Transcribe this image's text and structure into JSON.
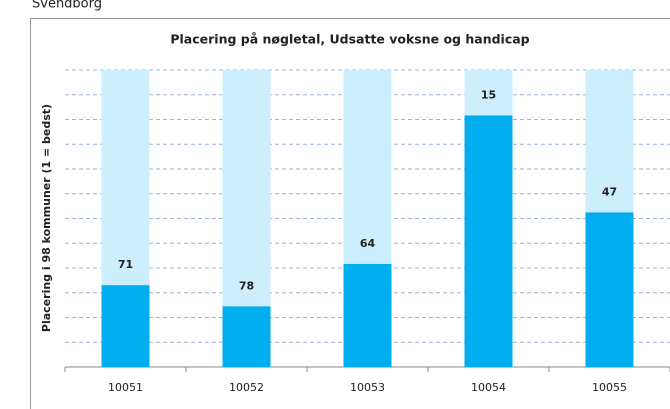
{
  "caption": "Svendborg",
  "chart_data": {
    "type": "bar",
    "title": "Placering på nøgletal, Udsatte voksne og handicap",
    "ylabel": "Placering i 98 kommuner (1 = bedst)",
    "categories": [
      "10051",
      "10052",
      "10053",
      "10054",
      "10055"
    ],
    "values": [
      71,
      78,
      64,
      15,
      47
    ],
    "color": "#00aeef",
    "background_color": "#cdeefc",
    "ylim": [
      98,
      0
    ],
    "grid": true
  }
}
